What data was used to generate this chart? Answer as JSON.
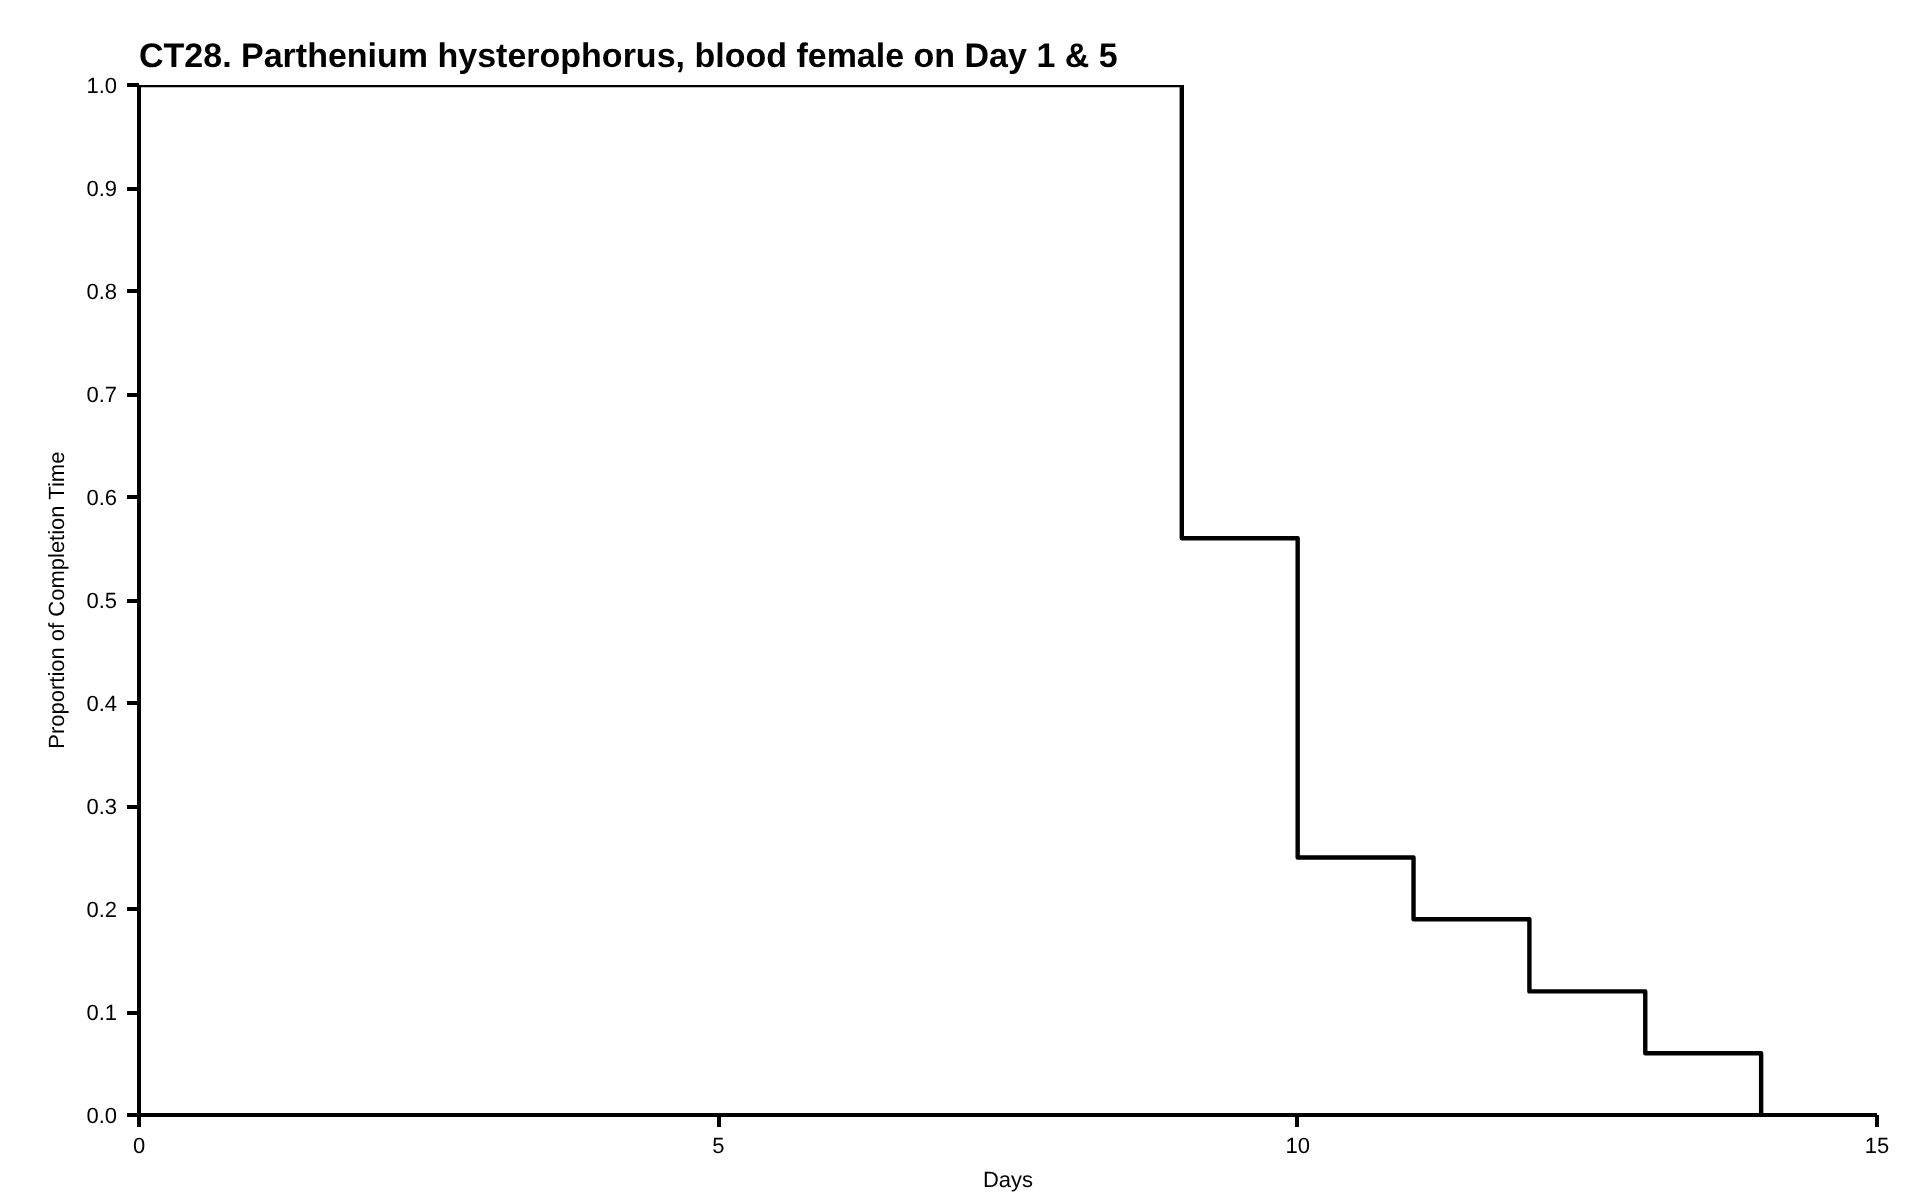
{
  "chart_data": {
    "type": "step",
    "title": "CT28. Parthenium hysterophorus, blood female on Day 1 & 5",
    "xlabel": "Days",
    "ylabel": "Proportion of Completion Time",
    "x": [
      0,
      9,
      10,
      11,
      12,
      13,
      14
    ],
    "series": [
      {
        "color": "#000000",
        "values": [
          1.0,
          0.56,
          0.25,
          0.19,
          0.12,
          0.06,
          0.0
        ]
      }
    ],
    "xlim": [
      0,
      15
    ],
    "xticks": [
      0,
      5,
      10,
      15
    ],
    "ylim": [
      0,
      1
    ],
    "yticks": [
      {
        "value": 0,
        "label": "0.0"
      },
      0.1,
      0.2,
      0.3,
      0.4,
      0.5,
      0.6,
      0.7,
      0.8,
      0.9,
      {
        "value": 1,
        "label": "1.0"
      }
    ],
    "grid": false,
    "marker": "none",
    "line_style": "solid"
  }
}
